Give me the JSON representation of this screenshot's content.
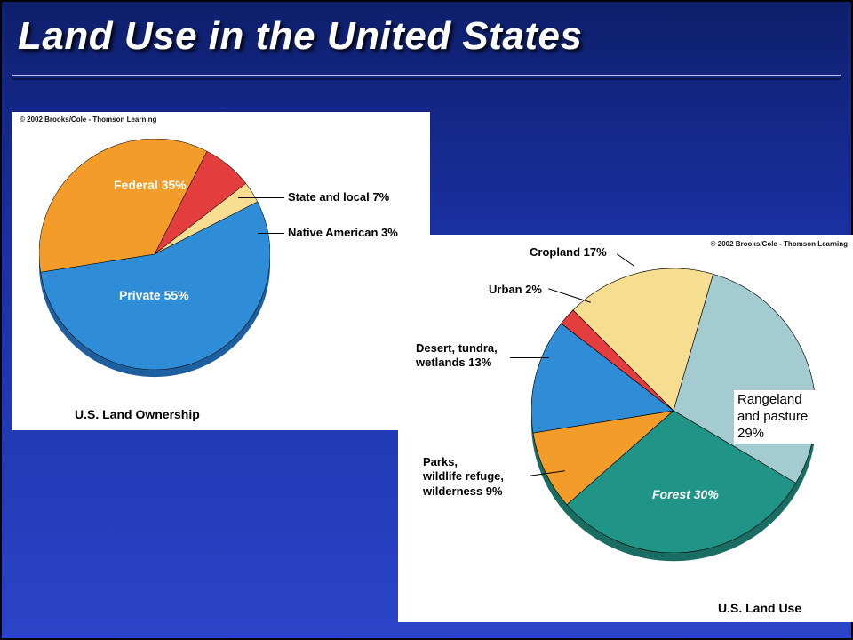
{
  "title": "Land Use in the United States",
  "background_gradient": [
    "#0e1f6b",
    "#1a2fa0",
    "#2b44c9"
  ],
  "rule_colors": {
    "light": "#b8c2ff",
    "dark": "#091347"
  },
  "ownership_chart": {
    "type": "pie",
    "title": "U.S. Land Ownership",
    "copyright": "© 2002 Brooks/Cole - Thomson Learning",
    "label_fontsize": 13,
    "inner_label_fontsize": 14,
    "base_shadow_color": "#1e5fa0",
    "slices": [
      {
        "key": "private",
        "label": "Private\n55%",
        "value": 55,
        "color": "#2f8cd6",
        "inner_text_color": "#ffffff"
      },
      {
        "key": "federal",
        "label": "Federal\n35%",
        "value": 35,
        "color": "#f39c2a",
        "inner_text_color": "#ffffff"
      },
      {
        "key": "state_local",
        "label": "State and local 7%",
        "value": 7,
        "color": "#e43d3d"
      },
      {
        "key": "native_american",
        "label": "Native American 3%",
        "value": 3,
        "color": "#f6dd8f"
      }
    ]
  },
  "landuse_chart": {
    "type": "pie",
    "title": "U.S. Land Use",
    "copyright": "© 2002 Brooks/Cole - Thomson Learning",
    "label_fontsize": 13,
    "inner_label_fontsize": 14,
    "base_shadow_color": "#1a6d62",
    "slices": [
      {
        "key": "rangeland",
        "label": "Rangeland\nand pasture\n29%",
        "value": 29,
        "color": "#a4cbd0"
      },
      {
        "key": "forest",
        "label": "Forest\n30%",
        "value": 30,
        "color": "#1f9487",
        "inner_text_color": "#ffffff"
      },
      {
        "key": "parks",
        "label": "Parks,\nwildlife refuge,\nwilderness 9%",
        "value": 9,
        "color": "#f39c2a"
      },
      {
        "key": "desert",
        "label": "Desert, tundra,\nwetlands 13%",
        "value": 13,
        "color": "#2f8cd6"
      },
      {
        "key": "urban",
        "label": "Urban 2%",
        "value": 2,
        "color": "#e43d3d"
      },
      {
        "key": "cropland",
        "label": "Cropland 17%",
        "value": 17,
        "color": "#f6dd8f"
      }
    ]
  },
  "rangeland_note": "Rangeland\nand pasture\n29%"
}
